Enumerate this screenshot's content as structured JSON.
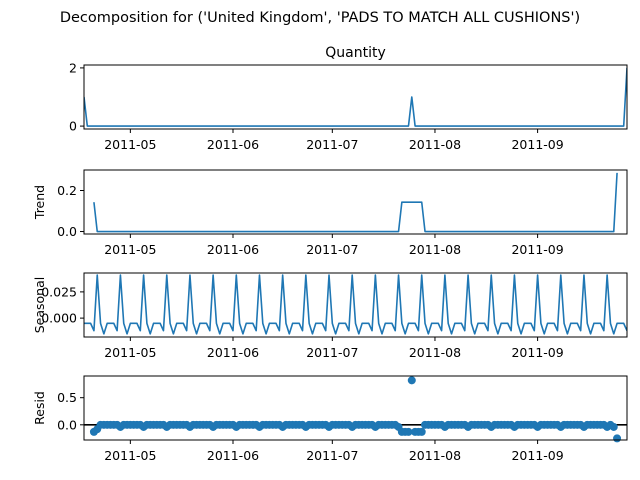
{
  "figure": {
    "title": "Decomposition for ('United Kingdom', 'PADS TO MATCH ALL CUSHIONS')",
    "series_color": "#1f77b4"
  },
  "chart_data": [
    {
      "type": "line",
      "title": "Quantity",
      "ylabel": "",
      "xlim": [
        "2011-04-17",
        "2011-09-28"
      ],
      "ylim": [
        -0.1,
        2.1
      ],
      "yticks": [
        0,
        2
      ],
      "ytick_labels": [
        "0",
        "2"
      ],
      "xticks": [
        "2011-05-01",
        "2011-06-01",
        "2011-07-01",
        "2011-08-01",
        "2011-09-01"
      ],
      "xtick_labels": [
        "2011-05",
        "2011-06",
        "2011-07",
        "2011-08",
        "2011-09"
      ],
      "x": [
        "2011-04-17",
        "2011-04-18",
        "2011-07-24",
        "2011-07-25",
        "2011-07-26",
        "2011-09-27",
        "2011-09-28"
      ],
      "values": [
        1,
        0,
        0,
        1,
        0,
        0,
        2
      ]
    },
    {
      "type": "line",
      "title": "",
      "ylabel": "Trend",
      "xlim": [
        "2011-04-17",
        "2011-09-28"
      ],
      "ylim": [
        -0.012,
        0.3
      ],
      "yticks": [
        0.0,
        0.2
      ],
      "ytick_labels": [
        "0.0",
        "0.2"
      ],
      "xticks": [
        "2011-05-01",
        "2011-06-01",
        "2011-07-01",
        "2011-08-01",
        "2011-09-01"
      ],
      "xtick_labels": [
        "2011-05",
        "2011-06",
        "2011-07",
        "2011-08",
        "2011-09"
      ],
      "x": [
        "2011-04-20",
        "2011-04-21",
        "2011-07-21",
        "2011-07-22",
        "2011-07-28",
        "2011-07-29",
        "2011-09-24",
        "2011-09-25"
      ],
      "values": [
        0.143,
        0,
        0,
        0.143,
        0.143,
        0,
        0,
        0.286
      ]
    },
    {
      "type": "line",
      "title": "",
      "ylabel": "Seasonal",
      "xlim": [
        "2011-04-17",
        "2011-09-28"
      ],
      "ylim": [
        -0.018,
        0.043
      ],
      "yticks": [
        0.0,
        0.025
      ],
      "ytick_labels": [
        "0.000",
        "0.025"
      ],
      "xticks": [
        "2011-05-01",
        "2011-06-01",
        "2011-07-01",
        "2011-08-01",
        "2011-09-01"
      ],
      "xtick_labels": [
        "2011-05",
        "2011-06",
        "2011-07",
        "2011-08",
        "2011-09"
      ],
      "period_days": 7,
      "first_peak": "2011-04-21",
      "pattern": [
        0.041,
        -0.005,
        -0.015,
        -0.005,
        -0.005,
        -0.005,
        -0.012
      ]
    },
    {
      "type": "scatter",
      "title": "",
      "ylabel": "Resid",
      "xlim": [
        "2011-04-17",
        "2011-09-28"
      ],
      "ylim": [
        -0.28,
        0.9
      ],
      "yticks": [
        0.0,
        0.5
      ],
      "ytick_labels": [
        "0.0",
        "0.5"
      ],
      "zero_line": true,
      "xticks": [
        "2011-05-01",
        "2011-06-01",
        "2011-07-01",
        "2011-08-01",
        "2011-09-01"
      ],
      "xtick_labels": [
        "2011-05",
        "2011-06",
        "2011-07",
        "2011-08",
        "2011-09"
      ],
      "start": "2011-04-20",
      "end": "2011-09-25",
      "base_pattern": [
        0.0,
        -0.04,
        0.0,
        0.0,
        0.0,
        0.0,
        0.0
      ],
      "overrides": {
        "2011-04-20": -0.13,
        "2011-04-21": -0.08,
        "2011-07-22": -0.13,
        "2011-07-23": -0.13,
        "2011-07-24": -0.13,
        "2011-07-25": 0.82,
        "2011-07-26": -0.13,
        "2011-07-27": -0.13,
        "2011-07-28": -0.13,
        "2011-09-24": -0.04,
        "2011-09-25": -0.25
      }
    }
  ]
}
